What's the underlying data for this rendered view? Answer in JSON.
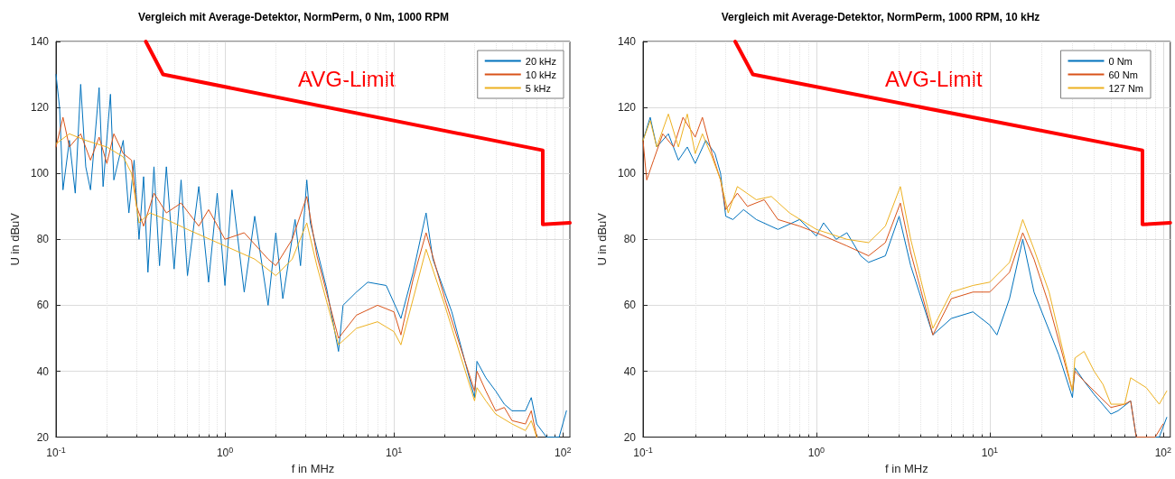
{
  "chart_data": [
    {
      "type": "line",
      "title": "Vergleich mit Average-Detektor, NormPerm, 0 Nm, 1000 RPM",
      "xlabel": "f in MHz",
      "ylabel": "U in dBuV",
      "log": "x",
      "grid": true,
      "legend": "top right",
      "marker": "none",
      "line_style": "solid",
      "xlim": [
        0.1,
        110
      ],
      "xticks": [
        {
          "value": 0.1,
          "label": "10$^{-1}$"
        },
        {
          "value": 1,
          "label": "10$^{0}$"
        },
        {
          "value": 10,
          "label": "10$^{1}$"
        },
        {
          "value": 100,
          "label": "10$^{2}$"
        }
      ],
      "ylim": [
        20,
        140
      ],
      "yticks": [
        20,
        40,
        60,
        80,
        100,
        120,
        140
      ],
      "annotations": [
        "AVG-Limit"
      ],
      "series": [
        {
          "name": "20 kHz",
          "color": "#0072bd",
          "x": [
            0.1,
            0.105,
            0.11,
            0.12,
            0.13,
            0.14,
            0.15,
            0.16,
            0.18,
            0.19,
            0.21,
            0.22,
            0.25,
            0.27,
            0.29,
            0.31,
            0.33,
            0.35,
            0.38,
            0.41,
            0.45,
            0.5,
            0.55,
            0.6,
            0.7,
            0.8,
            0.9,
            1.0,
            1.1,
            1.3,
            1.5,
            1.8,
            2.0,
            2.2,
            2.6,
            2.8,
            3.05,
            3.2,
            4.0,
            4.7,
            5,
            6,
            7,
            9,
            11,
            13,
            15.5,
            17,
            22,
            30,
            31,
            35,
            40,
            45,
            50,
            60,
            65,
            70,
            80,
            95,
            105
          ],
          "values": [
            130,
            120,
            95,
            110,
            94,
            127,
            102,
            95,
            126,
            96,
            124,
            98,
            110,
            88,
            104,
            80,
            99,
            70,
            102,
            72,
            102,
            71,
            98,
            69,
            96,
            67,
            94,
            66,
            95,
            64,
            87,
            60,
            82,
            62,
            86,
            72,
            98,
            85,
            65,
            46,
            60,
            64,
            67,
            66,
            56,
            70,
            88,
            74,
            58,
            32,
            43,
            38,
            34,
            30,
            28,
            28,
            32,
            24,
            20,
            20,
            28
          ]
        },
        {
          "name": "10 kHz",
          "color": "#d95319",
          "x": [
            0.1,
            0.11,
            0.12,
            0.14,
            0.16,
            0.18,
            0.2,
            0.22,
            0.25,
            0.28,
            0.3,
            0.33,
            0.38,
            0.45,
            0.55,
            0.7,
            0.8,
            1.0,
            1.3,
            1.8,
            2.0,
            2.5,
            3.05,
            3.5,
            4.7,
            6,
            8,
            10,
            11,
            13,
            15.5,
            20,
            30,
            31,
            35,
            40,
            45,
            50,
            60,
            65,
            70
          ],
          "values": [
            108,
            117,
            108,
            112,
            104,
            111,
            103,
            112,
            106,
            104,
            90,
            84,
            94,
            88,
            91,
            84,
            89,
            80,
            82,
            74,
            72,
            80,
            93,
            75,
            50,
            57,
            60,
            58,
            51,
            68,
            82,
            62,
            34,
            40,
            34,
            28,
            29,
            25,
            24,
            28,
            20
          ]
        },
        {
          "name": "5 kHz",
          "color": "#edb120",
          "x": [
            0.1,
            0.12,
            0.15,
            0.2,
            0.25,
            0.28,
            0.31,
            0.36,
            0.45,
            0.6,
            1.0,
            1.5,
            2.0,
            2.5,
            3.05,
            3.5,
            4.7,
            6,
            8,
            10,
            11,
            13,
            15.5,
            20,
            30,
            31,
            35,
            40,
            50,
            60,
            65,
            70
          ],
          "values": [
            109,
            112,
            110,
            108,
            105,
            100,
            85,
            88,
            86,
            83,
            78,
            74,
            69,
            74,
            85,
            72,
            48,
            53,
            55,
            52,
            48,
            62,
            77,
            60,
            31,
            35,
            31,
            27,
            24,
            22,
            25,
            20
          ]
        },
        {
          "color": "#ff0000",
          "x": [
            0.34,
            0.43,
            76,
            76,
            110
          ],
          "values": [
            140,
            130,
            107,
            84.5,
            85
          ]
        }
      ]
    },
    {
      "type": "line",
      "title": "Vergleich mit Average-Detektor, NormPerm, 1000 RPM, 10 kHz",
      "xlabel": "f in MHz",
      "ylabel": "U in dBuV",
      "log": "x",
      "grid": true,
      "legend": "top right",
      "marker": "none",
      "line_style": "solid",
      "xlim": [
        0.1,
        110
      ],
      "xticks": [
        {
          "value": 0.1,
          "label": "10$^{-1}$"
        },
        {
          "value": 1,
          "label": "10$^{0}$"
        },
        {
          "value": 10,
          "label": "10$^{1}$"
        },
        {
          "value": 100,
          "label": "10$^{2}$"
        }
      ],
      "ylim": [
        20,
        140
      ],
      "yticks": [
        20,
        40,
        60,
        80,
        100,
        120,
        140
      ],
      "annotations": [
        "AVG-Limit"
      ],
      "series": [
        {
          "name": "0 Nm",
          "color": "#0072bd",
          "x": [
            0.1,
            0.11,
            0.12,
            0.14,
            0.16,
            0.18,
            0.2,
            0.23,
            0.26,
            0.28,
            0.3,
            0.33,
            0.38,
            0.45,
            0.6,
            0.8,
            1.0,
            1.1,
            1.3,
            1.5,
            1.8,
            2.0,
            2.5,
            3.0,
            3.5,
            4.7,
            6,
            8,
            10,
            11,
            13,
            15.5,
            18,
            25,
            30,
            31,
            35,
            40,
            50,
            55,
            65,
            70,
            95,
            105
          ],
          "values": [
            110,
            117,
            108,
            112,
            104,
            108,
            103,
            110,
            106,
            100,
            87,
            86,
            89,
            86,
            83,
            86,
            81,
            85,
            80,
            82,
            75,
            73,
            75,
            87,
            72,
            51,
            56,
            58,
            54,
            51,
            62,
            80,
            64,
            45,
            32,
            41,
            37,
            33,
            27,
            28,
            31,
            20,
            20,
            26
          ]
        },
        {
          "name": "60 Nm",
          "color": "#d95319",
          "x": [
            0.1,
            0.105,
            0.115,
            0.13,
            0.15,
            0.17,
            0.2,
            0.22,
            0.25,
            0.28,
            0.3,
            0.35,
            0.4,
            0.5,
            0.6,
            0.8,
            1,
            1.5,
            2,
            2.5,
            3.05,
            3.5,
            4.7,
            6,
            8,
            10,
            13,
            15.5,
            18,
            22,
            30,
            31,
            35,
            40,
            50,
            60,
            65,
            70,
            90,
            100
          ],
          "values": [
            110,
            98,
            104,
            112,
            108,
            117,
            111,
            117,
            106,
            98,
            89,
            94,
            90,
            92,
            86,
            84,
            82,
            78,
            75,
            79,
            91,
            76,
            51,
            62,
            64,
            64,
            70,
            82,
            74,
            60,
            34,
            40,
            37,
            34,
            29,
            30,
            31,
            20,
            20,
            24
          ]
        },
        {
          "name": "127 Nm",
          "color": "#edb120",
          "x": [
            0.1,
            0.11,
            0.12,
            0.14,
            0.16,
            0.18,
            0.2,
            0.22,
            0.25,
            0.28,
            0.31,
            0.35,
            0.45,
            0.55,
            0.7,
            1.0,
            1.5,
            2.0,
            2.5,
            3.05,
            3.5,
            4.7,
            6,
            8,
            10,
            13,
            15.5,
            18,
            22,
            30,
            31,
            35,
            40,
            45,
            50,
            60,
            65,
            80,
            95,
            105
          ],
          "values": [
            110,
            116,
            108,
            118,
            108,
            118,
            106,
            112,
            105,
            98,
            88,
            96,
            92,
            93,
            88,
            83,
            80,
            79,
            84,
            96,
            80,
            53,
            64,
            66,
            67,
            73,
            86,
            77,
            64,
            34,
            44,
            46,
            40,
            36,
            30,
            30,
            38,
            35,
            30,
            34
          ]
        },
        {
          "color": "#ff0000",
          "x": [
            0.34,
            0.43,
            76,
            76,
            110
          ],
          "values": [
            140,
            130,
            107,
            84.5,
            85
          ]
        }
      ]
    }
  ]
}
